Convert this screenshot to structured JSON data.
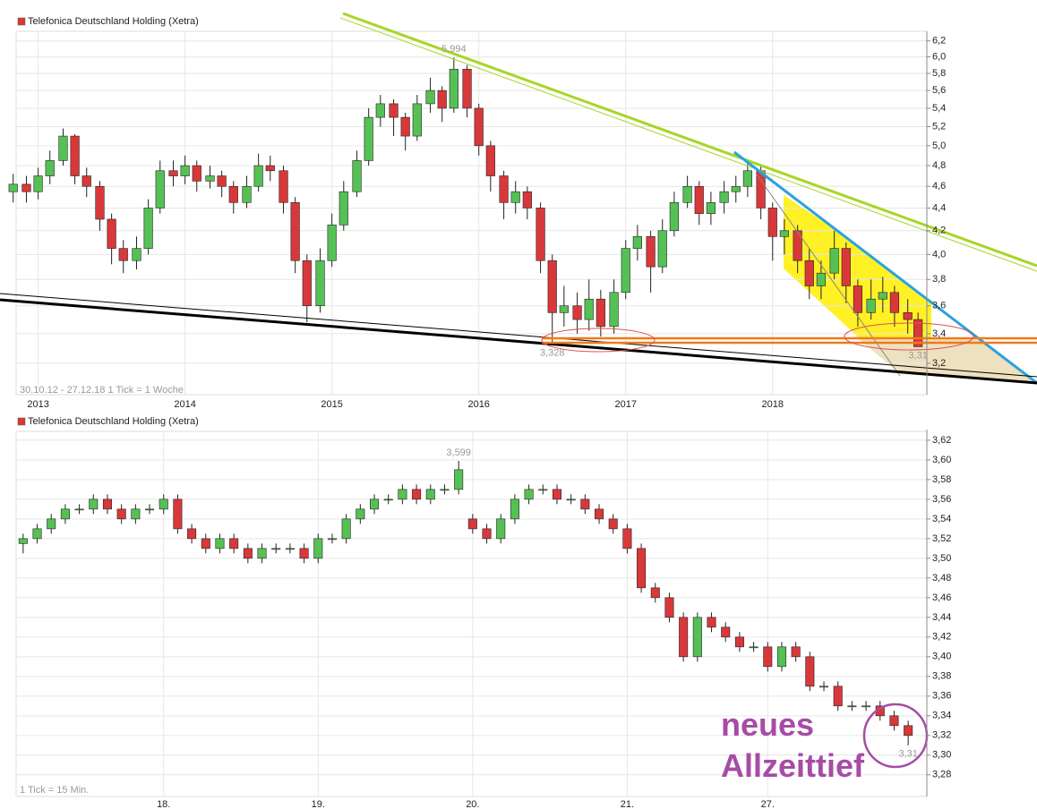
{
  "chart_data": [
    {
      "type": "candlestick",
      "log_scale": true,
      "grid": true,
      "footnote": "30.10.12 - 27.12.18   1 Tick = 1 Woche",
      "x": [
        2012.83,
        2012.92,
        2013.0,
        2013.08,
        2013.17,
        2013.25,
        2013.33,
        2013.42,
        2013.5,
        2013.58,
        2013.67,
        2013.75,
        2013.83,
        2013.92,
        2014.0,
        2014.08,
        2014.17,
        2014.25,
        2014.33,
        2014.42,
        2014.5,
        2014.58,
        2014.67,
        2014.75,
        2014.83,
        2014.92,
        2015.0,
        2015.08,
        2015.17,
        2015.25,
        2015.33,
        2015.42,
        2015.5,
        2015.58,
        2015.67,
        2015.75,
        2015.83,
        2015.92,
        2016.0,
        2016.08,
        2016.17,
        2016.25,
        2016.33,
        2016.42,
        2016.5,
        2016.58,
        2016.67,
        2016.75,
        2016.83,
        2016.92,
        2017.0,
        2017.08,
        2017.17,
        2017.25,
        2017.33,
        2017.42,
        2017.5,
        2017.58,
        2017.67,
        2017.75,
        2017.83,
        2017.92,
        2018.0,
        2018.08,
        2018.17,
        2018.25,
        2018.33,
        2018.42,
        2018.5,
        2018.58,
        2018.67,
        2018.75,
        2018.83,
        2018.92,
        2018.99
      ],
      "xlim": [
        2012.85,
        2019.05
      ],
      "xticks": [
        2013,
        2014,
        2015,
        2016,
        2017,
        2018
      ],
      "ylim": [
        3.0,
        6.3
      ],
      "yticks": [
        {
          "value": 3.2,
          "label": "3,2"
        },
        {
          "value": 3.4,
          "label": "3,4"
        },
        {
          "value": 3.6,
          "label": "3,6"
        },
        {
          "value": 3.8,
          "label": "3,8"
        },
        {
          "value": 4.0,
          "label": "4,0"
        },
        {
          "value": 4.2,
          "label": "4,2"
        },
        {
          "value": 4.4,
          "label": "4,4"
        },
        {
          "value": 4.6,
          "label": "4,6"
        },
        {
          "value": 4.8,
          "label": "4,8"
        },
        {
          "value": 5.0,
          "label": "5,0"
        },
        {
          "value": 5.2,
          "label": "5,2"
        },
        {
          "value": 5.4,
          "label": "5,4"
        },
        {
          "value": 5.6,
          "label": "5,6"
        },
        {
          "value": 5.8,
          "label": "5,8"
        },
        {
          "value": 6.0,
          "label": "6,0"
        },
        {
          "value": 6.2,
          "label": "6,2"
        }
      ],
      "series": [
        {
          "name": "Telefonica Deutschland Holding (Xetra)",
          "color": "#d9383a",
          "up_color": "#55c155",
          "down_color": "#d9383a",
          "open": [
            4.55,
            4.62,
            4.55,
            4.7,
            4.85,
            5.1,
            4.7,
            4.6,
            4.3,
            4.05,
            3.95,
            4.05,
            4.4,
            4.75,
            4.7,
            4.8,
            4.65,
            4.7,
            4.6,
            4.45,
            4.6,
            4.8,
            4.75,
            4.45,
            3.95,
            3.6,
            3.95,
            4.25,
            4.55,
            4.85,
            5.3,
            5.45,
            5.3,
            5.1,
            5.45,
            5.6,
            5.4,
            5.85,
            5.4,
            5.0,
            4.7,
            4.45,
            4.55,
            4.4,
            3.95,
            3.55,
            3.6,
            3.5,
            3.65,
            3.45,
            3.7,
            4.05,
            4.15,
            3.9,
            4.2,
            4.45,
            4.6,
            4.35,
            4.45,
            4.55,
            4.6,
            4.75,
            4.4,
            4.15,
            4.2,
            3.95,
            3.75,
            3.85,
            4.05,
            3.75,
            3.55,
            3.65,
            3.7,
            3.55,
            3.5
          ],
          "high": [
            4.72,
            4.7,
            4.78,
            4.95,
            5.18,
            5.12,
            4.78,
            4.65,
            4.35,
            4.12,
            4.15,
            4.48,
            4.85,
            4.85,
            4.9,
            4.85,
            4.8,
            4.75,
            4.65,
            4.7,
            4.92,
            4.9,
            4.8,
            4.5,
            4.0,
            4.05,
            4.35,
            4.65,
            4.95,
            5.4,
            5.55,
            5.5,
            5.35,
            5.55,
            5.75,
            5.65,
            5.994,
            5.9,
            5.45,
            5.05,
            4.75,
            4.65,
            4.6,
            4.45,
            4.0,
            3.75,
            3.7,
            3.8,
            3.72,
            3.8,
            4.12,
            4.25,
            4.2,
            4.3,
            4.55,
            4.7,
            4.65,
            4.55,
            4.65,
            4.7,
            4.85,
            4.8,
            4.45,
            4.3,
            4.25,
            4.05,
            3.95,
            4.2,
            4.1,
            3.8,
            3.8,
            3.82,
            3.75,
            3.65,
            3.55
          ],
          "low": [
            4.45,
            4.45,
            4.48,
            4.62,
            4.8,
            4.62,
            4.5,
            4.2,
            3.92,
            3.85,
            3.88,
            4.0,
            4.35,
            4.6,
            4.62,
            4.55,
            4.58,
            4.5,
            4.35,
            4.4,
            4.55,
            4.65,
            4.35,
            3.85,
            3.48,
            3.55,
            3.9,
            4.2,
            4.5,
            4.8,
            5.2,
            5.1,
            4.95,
            5.05,
            5.35,
            5.25,
            5.35,
            5.3,
            4.9,
            4.55,
            4.3,
            4.35,
            4.3,
            3.85,
            3.328,
            3.45,
            3.4,
            3.42,
            3.38,
            3.4,
            3.65,
            3.95,
            3.7,
            3.85,
            4.15,
            4.4,
            4.25,
            4.25,
            4.35,
            4.45,
            4.5,
            4.3,
            3.95,
            4.0,
            3.85,
            3.65,
            3.65,
            3.8,
            3.62,
            3.45,
            3.5,
            3.55,
            3.45,
            3.4,
            3.31
          ],
          "close": [
            4.62,
            4.55,
            4.7,
            4.85,
            5.1,
            4.7,
            4.6,
            4.3,
            4.05,
            3.95,
            4.05,
            4.4,
            4.75,
            4.7,
            4.8,
            4.65,
            4.7,
            4.6,
            4.45,
            4.6,
            4.8,
            4.75,
            4.45,
            3.95,
            3.6,
            3.95,
            4.25,
            4.55,
            4.85,
            5.3,
            5.45,
            5.3,
            5.1,
            5.45,
            5.6,
            5.4,
            5.85,
            5.4,
            5.0,
            4.7,
            4.45,
            4.55,
            4.4,
            3.95,
            3.55,
            3.6,
            3.5,
            3.65,
            3.45,
            3.7,
            4.05,
            4.15,
            3.9,
            4.2,
            4.45,
            4.6,
            4.35,
            4.45,
            4.55,
            4.6,
            4.75,
            4.4,
            4.15,
            4.2,
            3.95,
            3.75,
            3.85,
            4.05,
            3.75,
            3.55,
            3.65,
            3.7,
            3.55,
            3.5,
            3.31
          ],
          "value_labels": {
            "high": {
              "36": "5,994"
            },
            "low": {
              "44": "3,328",
              "74": "3,31"
            }
          }
        }
      ]
    },
    {
      "type": "candlestick",
      "log_scale": false,
      "grid": true,
      "footnote": "1 Tick = 15 Min.",
      "annotation": [
        "neues",
        "Allzeittief"
      ],
      "categories": [
        null,
        null,
        null,
        null,
        null,
        null,
        null,
        null,
        null,
        null,
        "18.",
        null,
        null,
        null,
        null,
        null,
        null,
        null,
        null,
        null,
        null,
        "19.",
        null,
        null,
        null,
        null,
        null,
        null,
        null,
        null,
        null,
        null,
        "20.",
        null,
        null,
        null,
        null,
        null,
        null,
        null,
        null,
        null,
        null,
        "21.",
        null,
        null,
        null,
        null,
        null,
        null,
        null,
        null,
        null,
        "27.",
        null,
        null,
        null,
        null,
        null,
        null,
        null,
        null,
        null,
        null
      ],
      "ylim": [
        3.258,
        3.629
      ],
      "yticks": [
        {
          "value": 3.28,
          "label": "3,28"
        },
        {
          "value": 3.3,
          "label": "3,30"
        },
        {
          "value": 3.32,
          "label": "3,32"
        },
        {
          "value": 3.34,
          "label": "3,34"
        },
        {
          "value": 3.36,
          "label": "3,36"
        },
        {
          "value": 3.38,
          "label": "3,38"
        },
        {
          "value": 3.4,
          "label": "3,40"
        },
        {
          "value": 3.42,
          "label": "3,42"
        },
        {
          "value": 3.44,
          "label": "3,44"
        },
        {
          "value": 3.46,
          "label": "3,46"
        },
        {
          "value": 3.48,
          "label": "3,48"
        },
        {
          "value": 3.5,
          "label": "3,50"
        },
        {
          "value": 3.52,
          "label": "3,52"
        },
        {
          "value": 3.54,
          "label": "3,54"
        },
        {
          "value": 3.56,
          "label": "3,56"
        },
        {
          "value": 3.58,
          "label": "3,58"
        },
        {
          "value": 3.6,
          "label": "3,60"
        },
        {
          "value": 3.62,
          "label": "3,62"
        }
      ],
      "series": [
        {
          "name": "Telefonica Deutschland Holding (Xetra)",
          "color": "#d9383a",
          "up_color": "#55c155",
          "down_color": "#d9383a",
          "open": [
            3.515,
            3.52,
            3.53,
            3.54,
            3.55,
            3.55,
            3.56,
            3.55,
            3.54,
            3.55,
            3.55,
            3.56,
            3.53,
            3.52,
            3.51,
            3.52,
            3.51,
            3.5,
            3.51,
            3.51,
            3.51,
            3.5,
            3.52,
            3.52,
            3.54,
            3.55,
            3.56,
            3.56,
            3.57,
            3.56,
            3.57,
            3.57,
            3.54,
            3.53,
            3.52,
            3.54,
            3.56,
            3.57,
            3.57,
            3.56,
            3.56,
            3.55,
            3.54,
            3.53,
            3.51,
            3.47,
            3.46,
            3.44,
            3.4,
            3.44,
            3.43,
            3.42,
            3.41,
            3.41,
            3.39,
            3.41,
            3.4,
            3.37,
            3.37,
            3.35,
            3.35,
            3.35,
            3.34,
            3.33
          ],
          "high": [
            3.525,
            3.535,
            3.545,
            3.555,
            3.555,
            3.565,
            3.565,
            3.555,
            3.555,
            3.555,
            3.565,
            3.565,
            3.535,
            3.525,
            3.525,
            3.525,
            3.515,
            3.515,
            3.515,
            3.515,
            3.515,
            3.525,
            3.525,
            3.545,
            3.555,
            3.565,
            3.565,
            3.575,
            3.575,
            3.575,
            3.575,
            3.599,
            3.545,
            3.535,
            3.545,
            3.565,
            3.575,
            3.575,
            3.575,
            3.565,
            3.565,
            3.555,
            3.545,
            3.535,
            3.515,
            3.475,
            3.465,
            3.445,
            3.445,
            3.445,
            3.435,
            3.425,
            3.415,
            3.415,
            3.415,
            3.415,
            3.405,
            3.375,
            3.375,
            3.355,
            3.355,
            3.355,
            3.345,
            3.335
          ],
          "low": [
            3.505,
            3.515,
            3.525,
            3.535,
            3.545,
            3.545,
            3.545,
            3.535,
            3.535,
            3.545,
            3.545,
            3.525,
            3.515,
            3.505,
            3.505,
            3.505,
            3.495,
            3.495,
            3.505,
            3.505,
            3.495,
            3.495,
            3.515,
            3.515,
            3.535,
            3.545,
            3.555,
            3.555,
            3.555,
            3.555,
            3.565,
            3.565,
            3.525,
            3.515,
            3.515,
            3.535,
            3.555,
            3.565,
            3.555,
            3.555,
            3.545,
            3.535,
            3.525,
            3.505,
            3.465,
            3.455,
            3.435,
            3.395,
            3.395,
            3.425,
            3.415,
            3.405,
            3.405,
            3.385,
            3.385,
            3.395,
            3.365,
            3.365,
            3.345,
            3.345,
            3.345,
            3.335,
            3.325,
            3.31
          ],
          "close": [
            3.52,
            3.53,
            3.54,
            3.55,
            3.55,
            3.56,
            3.55,
            3.54,
            3.55,
            3.55,
            3.56,
            3.53,
            3.52,
            3.51,
            3.52,
            3.51,
            3.5,
            3.51,
            3.51,
            3.51,
            3.5,
            3.52,
            3.52,
            3.54,
            3.55,
            3.56,
            3.56,
            3.57,
            3.56,
            3.57,
            3.57,
            3.59,
            3.53,
            3.52,
            3.54,
            3.56,
            3.57,
            3.57,
            3.56,
            3.56,
            3.55,
            3.54,
            3.53,
            3.51,
            3.47,
            3.46,
            3.44,
            3.4,
            3.44,
            3.43,
            3.42,
            3.41,
            3.41,
            3.39,
            3.41,
            3.4,
            3.37,
            3.37,
            3.35,
            3.35,
            3.35,
            3.34,
            3.33,
            3.32
          ],
          "value_labels": {
            "high": {
              "31": "3,599"
            },
            "low": {
              "63": "3,31"
            }
          }
        }
      ]
    }
  ]
}
